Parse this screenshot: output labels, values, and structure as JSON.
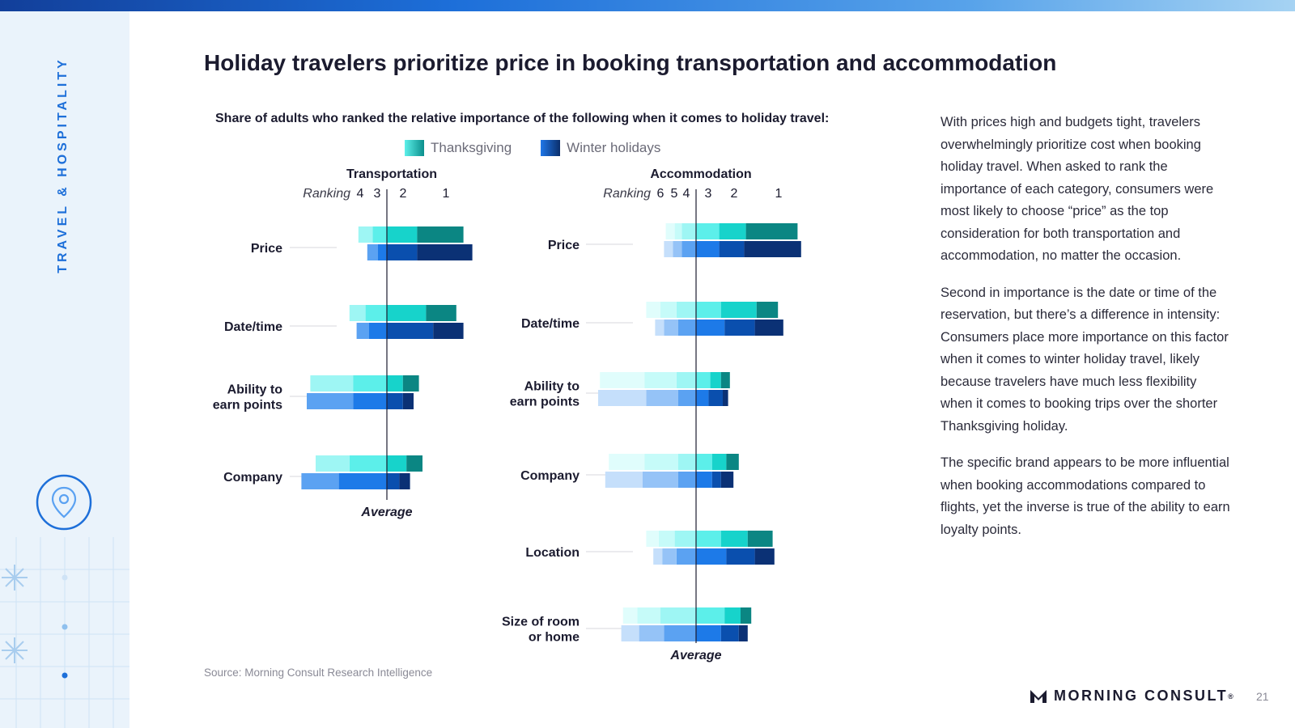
{
  "page": {
    "section_label": "TRAVEL & HOSPITALITY",
    "title": "Holiday travelers prioritize price in booking transportation and accommodation",
    "source": "Source: Morning Consult Research Intelligence",
    "logo_text": "MORNING CONSULT",
    "logo_mark": "®",
    "page_number": "21"
  },
  "body_text": {
    "p1": "With prices high and budgets tight, travelers overwhelmingly prioritize cost when booking holiday travel. When asked to rank the importance of each category, consumers were most likely to choose “price” as the top consideration for both transportation and accommodation, no matter the occasion.",
    "p2": "Second in importance is the date or time of the reservation, but there’s a difference in intensity: Consumers place more importance on this factor when it comes to winter holiday travel, likely because travelers have much less flexibility when it comes to booking trips over the shorter Thanksgiving holiday.",
    "p3": "The specific brand appears to be more influential when booking accommodations compared to flights, yet the inverse is true of the ability to earn loyalty points."
  },
  "colors": {
    "thanksgiving": [
      "#0b8683",
      "#17d3cb",
      "#5cefea",
      "#9ef6f4",
      "#c6fbf9",
      "#e0fdfc"
    ],
    "winter": [
      "#0b3175",
      "#0a4fae",
      "#1d7ae8",
      "#5ba2f2",
      "#95c3f7",
      "#c5dffb"
    ]
  },
  "chart_data": {
    "type": "diverging stacked bar",
    "subtitle": "Share of adults who ranked the relative importance of the following when it comes to holiday travel:",
    "legend": [
      "Thanksgiving",
      "Winter holidays"
    ],
    "ranking_label": "Ranking",
    "axis_label": "Average",
    "panels": [
      {
        "title": "Transportation",
        "rank_labels": [
          "4",
          "3",
          "2",
          "1"
        ],
        "categories": [
          {
            "label": "Price",
            "thanksgiving": {
              "1": 26,
              "2": 17,
              "3": 8,
              "4": 8
            },
            "winter": {
              "1": 31,
              "2": 17,
              "3": 5,
              "4": 6
            }
          },
          {
            "label": "Date/time",
            "thanksgiving": {
              "1": 17,
              "2": 22,
              "3": 12,
              "4": 9
            },
            "winter": {
              "1": 17,
              "2": 26,
              "3": 10,
              "4": 7
            }
          },
          {
            "label": "Ability to earn points",
            "thanksgiving": {
              "1": 9,
              "2": 9,
              "3": 19,
              "4": 24
            },
            "winter": {
              "1": 6,
              "2": 9,
              "3": 19,
              "4": 26
            }
          },
          {
            "label": "Company",
            "thanksgiving": {
              "1": 9,
              "2": 11,
              "3": 21,
              "4": 19
            },
            "winter": {
              "1": 6,
              "2": 7,
              "3": 27,
              "4": 21
            }
          }
        ]
      },
      {
        "title": "Accommodation",
        "rank_labels": [
          "6",
          "5",
          "4",
          "3",
          "2",
          "1"
        ],
        "categories": [
          {
            "label": "Price",
            "thanksgiving": {
              "1": 29,
              "2": 15,
              "3": 13,
              "4": 8,
              "5": 4,
              "6": 5
            },
            "winter": {
              "1": 32,
              "2": 14,
              "3": 13,
              "4": 8,
              "5": 5,
              "6": 5
            }
          },
          {
            "label": "Date/time",
            "thanksgiving": {
              "1": 12,
              "2": 20,
              "3": 14,
              "4": 11,
              "5": 9,
              "6": 8
            },
            "winter": {
              "1": 16,
              "2": 17,
              "3": 16,
              "4": 10,
              "5": 8,
              "6": 5
            }
          },
          {
            "label": "Ability to earn points",
            "thanksgiving": {
              "1": 5,
              "2": 6,
              "3": 8,
              "4": 11,
              "5": 18,
              "6": 25
            },
            "winter": {
              "1": 3,
              "2": 8,
              "3": 7,
              "4": 10,
              "5": 18,
              "6": 27
            }
          },
          {
            "label": "Company",
            "thanksgiving": {
              "1": 7,
              "2": 8,
              "3": 9,
              "4": 10,
              "5": 19,
              "6": 20
            },
            "winter": {
              "1": 7,
              "2": 5,
              "3": 9,
              "4": 10,
              "5": 20,
              "6": 21
            }
          },
          {
            "label": "Location",
            "thanksgiving": {
              "1": 14,
              "2": 15,
              "3": 14,
              "4": 12,
              "5": 9,
              "6": 7
            },
            "winter": {
              "1": 11,
              "2": 16,
              "3": 17,
              "4": 11,
              "5": 8,
              "6": 5
            }
          },
          {
            "label": "Size of room or home",
            "thanksgiving": {
              "1": 6,
              "2": 9,
              "3": 16,
              "4": 20,
              "5": 13,
              "6": 8
            },
            "winter": {
              "1": 5,
              "2": 10,
              "3": 14,
              "4": 18,
              "5": 14,
              "6": 10
            }
          }
        ]
      }
    ]
  }
}
